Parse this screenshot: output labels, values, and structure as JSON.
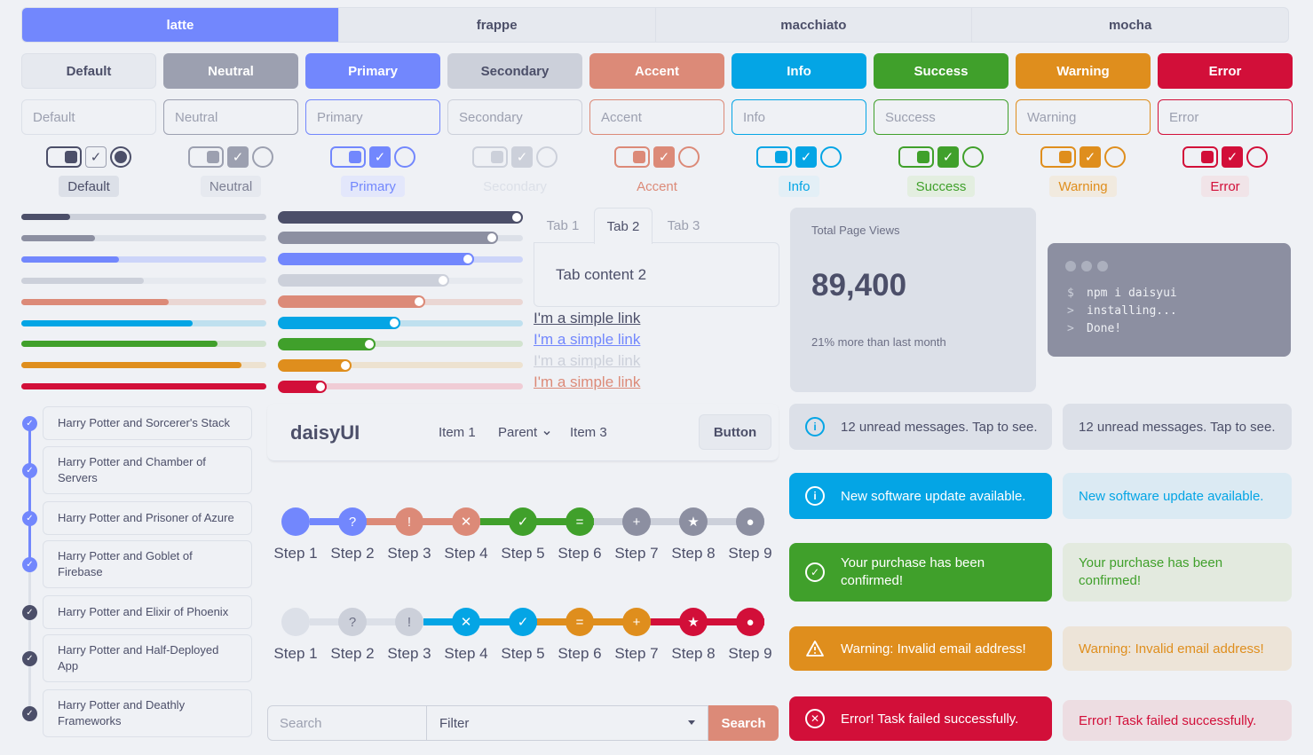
{
  "colors": {
    "default": "#e6e9ef",
    "neutral": "#9ca0b0",
    "primary": "#7287fd",
    "secondary": "#ccd0da",
    "accent": "#dc8a78",
    "info": "#04a5e5",
    "success": "#40a02b",
    "warning": "#df8e1d",
    "error": "#d20f39",
    "base": "#eff1f5",
    "text": "#4c4f69"
  },
  "themes": [
    "latte",
    "frappe",
    "macchiato",
    "mocha"
  ],
  "buttons": [
    "Default",
    "Neutral",
    "Primary",
    "Secondary",
    "Accent",
    "Info",
    "Success",
    "Warning",
    "Error"
  ],
  "inputs": [
    "Default",
    "Neutral",
    "Primary",
    "Secondary",
    "Accent",
    "Info",
    "Success",
    "Warning",
    "Error"
  ],
  "badges": [
    "Default",
    "Neutral",
    "Primary",
    "Secondary",
    "Accent",
    "Info",
    "Success",
    "Warning",
    "Error"
  ],
  "progress": [
    0.2,
    0.3,
    0.4,
    0.5,
    0.6,
    0.7,
    0.8,
    0.9,
    1.0
  ],
  "ranges": [
    1.0,
    0.9,
    0.8,
    0.7,
    0.6,
    0.5,
    0.4,
    0.3,
    0.2
  ],
  "tabs": {
    "items": [
      "Tab 1",
      "Tab 2",
      "Tab 3"
    ],
    "active": 1,
    "content": "Tab content 2"
  },
  "links": [
    "I'm a simple link",
    "I'm a simple link",
    "I'm a simple link",
    "I'm a simple link"
  ],
  "stat": {
    "title": "Total Page Views",
    "value": "89,400",
    "desc": "21% more than last month"
  },
  "mockup": {
    "lines": [
      {
        "prefix": "$",
        "text": "npm i daisyui"
      },
      {
        "prefix": ">",
        "text": "installing..."
      },
      {
        "prefix": ">",
        "text": "Done!"
      }
    ]
  },
  "timeline": [
    "Harry Potter and Sorcerer's Stack",
    "Harry Potter and Chamber of Servers",
    "Harry Potter and Prisoner of Azure",
    "Harry Potter and Goblet of Firebase",
    "Harry Potter and Elixir of Phoenix",
    "Harry Potter and Half-Deployed App",
    "Harry Potter and Deathly Frameworks"
  ],
  "navbar": {
    "brand": "daisyUI",
    "items": [
      "Item 1",
      "Parent",
      "Item 3"
    ],
    "button": "Button"
  },
  "steps1": {
    "labels": [
      "Step 1",
      "Step 2",
      "Step 3",
      "Step 4",
      "Step 5",
      "Step 6",
      "Step 7",
      "Step 8",
      "Step 9"
    ],
    "glyphs": [
      "",
      "?",
      "!",
      "✕",
      "✓",
      "=",
      "+",
      "★",
      "●"
    ]
  },
  "steps2": {
    "labels": [
      "Step 1",
      "Step 2",
      "Step 3",
      "Step 4",
      "Step 5",
      "Step 6",
      "Step 7",
      "Step 8",
      "Step 9"
    ],
    "glyphs": [
      "",
      "?",
      "!",
      "✕",
      "✓",
      "=",
      "+",
      "★",
      "●"
    ]
  },
  "search": {
    "placeholder": "Search",
    "filter": "Filter",
    "button": "Search"
  },
  "alerts": [
    "12 unread messages. Tap to see.",
    "New software update available.",
    "Your purchase has been confirmed!",
    "Warning: Invalid email address!",
    "Error! Task failed successfully."
  ],
  "alerts_soft": [
    "12 unread messages. Tap to see.",
    "New software update available.",
    "Your purchase has been confirmed!",
    "Warning: Invalid email address!",
    "Error! Task failed successfully."
  ]
}
